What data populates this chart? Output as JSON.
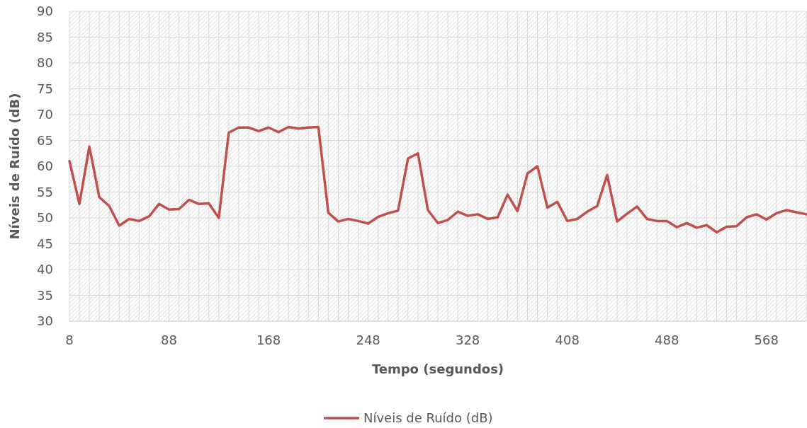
{
  "chart_data": {
    "type": "line",
    "xlabel": "Tempo (segundos)",
    "ylabel": "Níveis de Ruído (dB)",
    "x": [
      8,
      16,
      24,
      32,
      40,
      48,
      56,
      64,
      72,
      80,
      88,
      96,
      104,
      112,
      120,
      128,
      136,
      144,
      152,
      160,
      168,
      176,
      184,
      192,
      200,
      208,
      216,
      224,
      232,
      240,
      248,
      256,
      264,
      272,
      280,
      288,
      296,
      304,
      312,
      320,
      328,
      336,
      344,
      352,
      360,
      368,
      376,
      384,
      392,
      400,
      408,
      416,
      424,
      432,
      440,
      448,
      456,
      464,
      472,
      480,
      488,
      496,
      504,
      512,
      520,
      528,
      536,
      544,
      552,
      560,
      568,
      576,
      584,
      592,
      600
    ],
    "series": [
      {
        "name": "Níveis de Ruído (dB)",
        "color": "#c0504d",
        "values": [
          61,
          52.7,
          63.8,
          54,
          52.3,
          48.5,
          49.8,
          49.4,
          50.3,
          52.7,
          51.6,
          51.7,
          53.5,
          52.7,
          52.8,
          50,
          66.5,
          67.5,
          67.5,
          66.8,
          67.5,
          66.6,
          67.6,
          67.3,
          67.5,
          67.6,
          51,
          49.3,
          49.8,
          49.4,
          48.9,
          50.2,
          50.9,
          51.4,
          61.5,
          62.5,
          51.5,
          49,
          49.6,
          51.2,
          50.4,
          50.7,
          49.8,
          50.1,
          54.5,
          51.3,
          58.6,
          60,
          52,
          53.1,
          49.4,
          49.8,
          51.2,
          52.3,
          58.3,
          49.3,
          50.8,
          52.2,
          49.8,
          49.4,
          49.4,
          48.2,
          49,
          48.1,
          48.6,
          47.2,
          48.3,
          48.4,
          50.1,
          50.7,
          49.7,
          50.9,
          51.5,
          51.1,
          50.7
        ]
      }
    ],
    "xlim": [
      8,
      600
    ],
    "xticks": [
      8,
      88,
      168,
      248,
      328,
      408,
      488,
      568
    ],
    "ylim": [
      30,
      90
    ],
    "yticks": [
      30,
      35,
      40,
      45,
      50,
      55,
      60,
      65,
      70,
      75,
      80,
      85,
      90
    ],
    "grid": true,
    "legend": "bottom",
    "marker": "none",
    "line_style": "solid"
  }
}
